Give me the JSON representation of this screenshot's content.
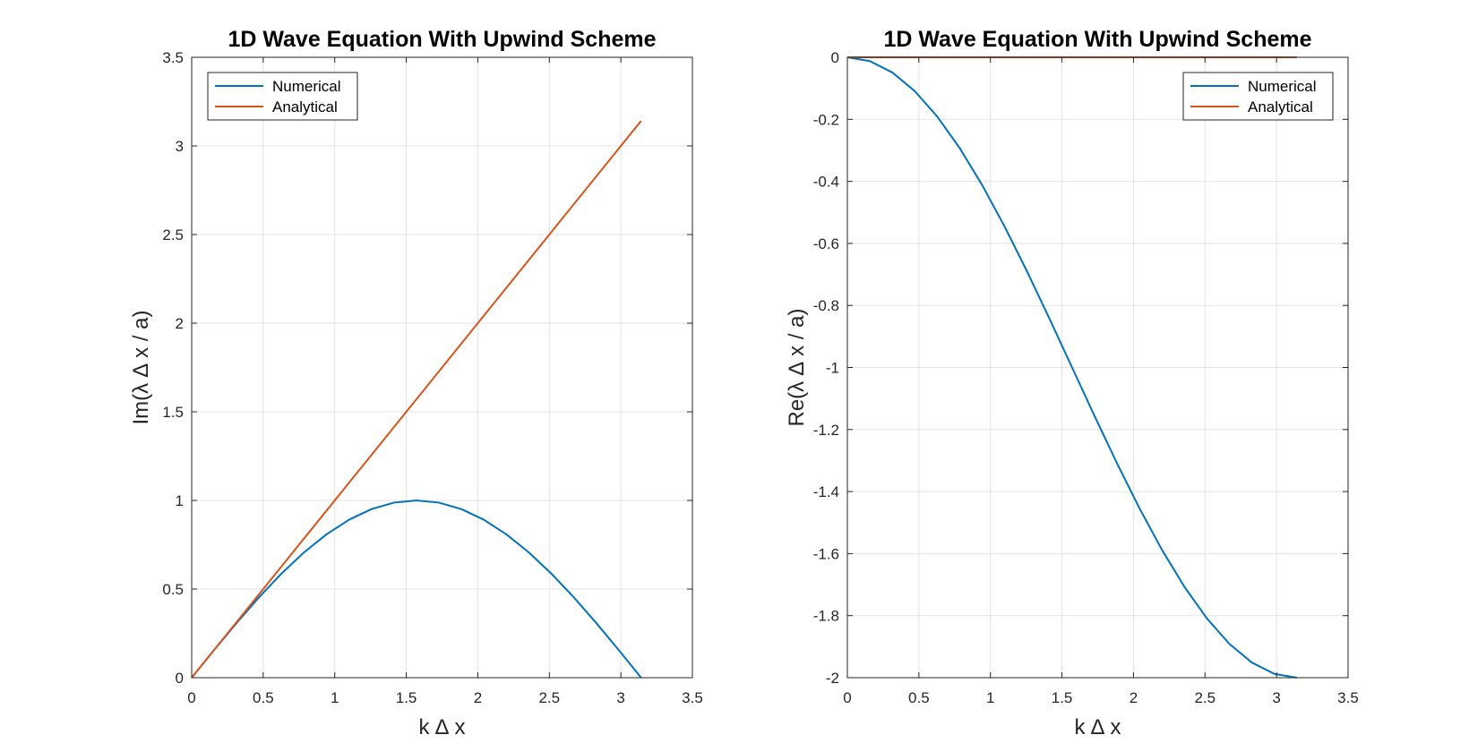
{
  "chart_data": [
    {
      "type": "line",
      "title": "1D Wave Equation With Upwind Scheme",
      "xlabel": "k ∆ x",
      "ylabel": "Im(λ ∆ x / a)",
      "xlim": [
        0,
        3.5
      ],
      "ylim": [
        0,
        3.5
      ],
      "xticks": [
        0,
        0.5,
        1,
        1.5,
        2,
        2.5,
        3,
        3.5
      ],
      "xtick_labels": [
        "0",
        "0.5",
        "1",
        "1.5",
        "2",
        "2.5",
        "3",
        "3.5"
      ],
      "yticks": [
        0,
        0.5,
        1,
        1.5,
        2,
        2.5,
        3,
        3.5
      ],
      "ytick_labels": [
        "0",
        "0.5",
        "1",
        "1.5",
        "2",
        "2.5",
        "3",
        "3.5"
      ],
      "grid": true,
      "legend_position": "top-left",
      "series": [
        {
          "name": "Numerical",
          "color": "#0072BD",
          "x": [
            0,
            0.1571,
            0.3142,
            0.4712,
            0.6283,
            0.7854,
            0.9425,
            1.0996,
            1.2566,
            1.4137,
            1.5708,
            1.7279,
            1.885,
            2.042,
            2.1991,
            2.3562,
            2.5133,
            2.6704,
            2.8274,
            2.9845,
            3.1416
          ],
          "y": [
            0,
            0.1564,
            0.309,
            0.454,
            0.5878,
            0.7071,
            0.809,
            0.891,
            0.9511,
            0.9877,
            1.0,
            0.9877,
            0.9511,
            0.891,
            0.809,
            0.7071,
            0.5878,
            0.454,
            0.309,
            0.1564,
            0.0
          ]
        },
        {
          "name": "Analytical",
          "color": "#D95319",
          "x": [
            0,
            3.1416
          ],
          "y": [
            0,
            3.1416
          ]
        }
      ]
    },
    {
      "type": "line",
      "title": "1D Wave Equation With Upwind Scheme",
      "xlabel": "k ∆ x",
      "ylabel": "Re(λ ∆ x / a)",
      "xlim": [
        0,
        3.5
      ],
      "ylim": [
        -2,
        0
      ],
      "xticks": [
        0,
        0.5,
        1,
        1.5,
        2,
        2.5,
        3,
        3.5
      ],
      "xtick_labels": [
        "0",
        "0.5",
        "1",
        "1.5",
        "2",
        "2.5",
        "3",
        "3.5"
      ],
      "yticks": [
        0,
        -0.2,
        -0.4,
        -0.6,
        -0.8,
        -1,
        -1.2,
        -1.4,
        -1.6,
        -1.8,
        -2
      ],
      "ytick_labels": [
        "0",
        "-0.2",
        "-0.4",
        "-0.6",
        "-0.8",
        "-1",
        "-1.2",
        "-1.4",
        "-1.6",
        "-1.8",
        "-2"
      ],
      "grid": true,
      "legend_position": "top-right",
      "series": [
        {
          "name": "Numerical",
          "color": "#0072BD",
          "x": [
            0,
            0.1571,
            0.3142,
            0.4712,
            0.6283,
            0.7854,
            0.9425,
            1.0996,
            1.2566,
            1.4137,
            1.5708,
            1.7279,
            1.885,
            2.042,
            2.1991,
            2.3562,
            2.5133,
            2.6704,
            2.8274,
            2.9845,
            3.1416
          ],
          "y": [
            0,
            -0.0123,
            -0.0489,
            -0.109,
            -0.191,
            -0.2929,
            -0.4122,
            -0.546,
            -0.691,
            -0.8436,
            -1.0,
            -1.1564,
            -1.309,
            -1.454,
            -1.5878,
            -1.7071,
            -1.809,
            -1.891,
            -1.9511,
            -1.9877,
            -2.0
          ]
        },
        {
          "name": "Analytical",
          "color": "#D95319",
          "x": [
            0,
            3.1416
          ],
          "y": [
            0,
            0
          ]
        }
      ]
    }
  ]
}
